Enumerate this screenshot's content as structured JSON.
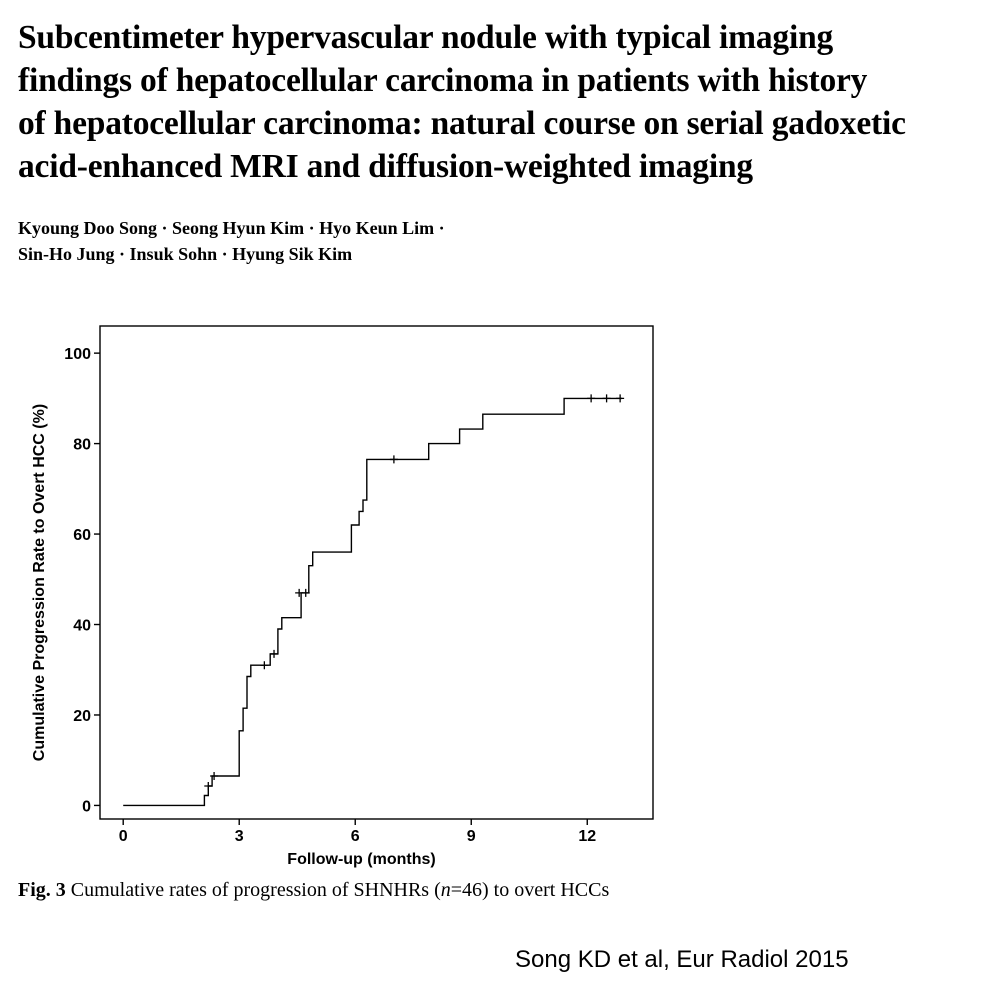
{
  "paper": {
    "title_lines": [
      "Subcentimeter hypervascular nodule with typical imaging",
      "findings of hepatocellular carcinoma in patients with history",
      "of hepatocellular carcinoma: natural course on serial gadoxetic",
      "acid-enhanced MRI and diffusion-weighted imaging"
    ],
    "author_lines": [
      "Kyoung Doo Song · Seong Hyun Kim · Hyo Keun Lim ·",
      "Sin-Ho Jung · Insuk Sohn · Hyung Sik Kim"
    ]
  },
  "figure": {
    "caption_label": "Fig. 3",
    "caption_text_before": "Cumulative rates of progression of SHNHRs (",
    "caption_n": "n",
    "caption_text_after": "=46) to overt HCCs"
  },
  "citation": "Song KD et al, Eur Radiol 2015",
  "chart_data": {
    "type": "line",
    "subtype": "kaplan-meier-step",
    "title": "",
    "xlabel": "Follow-up (months)",
    "ylabel": "Cumulative Progression Rate to Overt HCC (%)",
    "xlim": [
      -0.6,
      13.7
    ],
    "ylim": [
      -3,
      106
    ],
    "xticks": [
      0,
      3,
      6,
      9,
      12
    ],
    "yticks": [
      0,
      20,
      40,
      60,
      80,
      100
    ],
    "grid": false,
    "legend": "none",
    "series": [
      {
        "step_points": [
          [
            0,
            0
          ],
          [
            2.1,
            0
          ],
          [
            2.1,
            2.2
          ],
          [
            2.2,
            2.2
          ],
          [
            2.2,
            4.3
          ],
          [
            2.3,
            4.3
          ],
          [
            2.3,
            6.5
          ],
          [
            3.0,
            6.5
          ],
          [
            3.0,
            16.5
          ],
          [
            3.1,
            16.5
          ],
          [
            3.1,
            21.5
          ],
          [
            3.2,
            21.5
          ],
          [
            3.2,
            28.5
          ],
          [
            3.3,
            28.5
          ],
          [
            3.3,
            31
          ],
          [
            3.8,
            31
          ],
          [
            3.8,
            33.5
          ],
          [
            4.0,
            33.5
          ],
          [
            4.0,
            39
          ],
          [
            4.1,
            39
          ],
          [
            4.1,
            41.5
          ],
          [
            4.6,
            41.5
          ],
          [
            4.6,
            47
          ],
          [
            4.8,
            47
          ],
          [
            4.8,
            53
          ],
          [
            4.9,
            53
          ],
          [
            4.9,
            56
          ],
          [
            5.9,
            56
          ],
          [
            5.9,
            62
          ],
          [
            6.1,
            62
          ],
          [
            6.1,
            65
          ],
          [
            6.2,
            65
          ],
          [
            6.2,
            67.5
          ],
          [
            6.3,
            67.5
          ],
          [
            6.3,
            76.5
          ],
          [
            7.9,
            76.5
          ],
          [
            7.9,
            80
          ],
          [
            8.7,
            80
          ],
          [
            8.7,
            83.2
          ],
          [
            9.3,
            83.2
          ],
          [
            9.3,
            86.5
          ],
          [
            11.4,
            86.5
          ],
          [
            11.4,
            90
          ],
          [
            12.9,
            90
          ]
        ],
        "censored": [
          [
            2.2,
            4.3
          ],
          [
            2.35,
            6.5
          ],
          [
            3.65,
            31
          ],
          [
            3.9,
            33.5
          ],
          [
            4.55,
            47
          ],
          [
            4.72,
            47
          ],
          [
            7.0,
            76.5
          ],
          [
            12.1,
            90
          ],
          [
            12.5,
            90
          ],
          [
            12.85,
            90
          ]
        ]
      }
    ]
  }
}
